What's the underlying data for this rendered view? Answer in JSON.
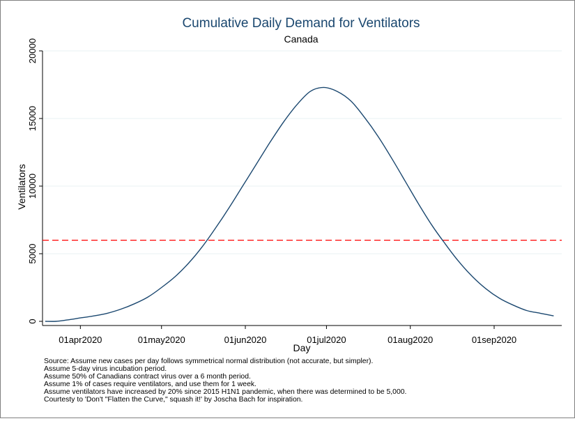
{
  "chart_data": {
    "type": "line",
    "title": "Cumulative Daily Demand for Ventilators",
    "subtitle": "Canada",
    "xlabel": "Day",
    "ylabel": "Ventilators",
    "x_ticks": [
      {
        "label": "01apr2020",
        "day": 0
      },
      {
        "label": "01may2020",
        "day": 30
      },
      {
        "label": "01jun2020",
        "day": 61
      },
      {
        "label": "01jul2020",
        "day": 91
      },
      {
        "label": "01aug2020",
        "day": 122
      },
      {
        "label": "01sep2020",
        "day": 153
      }
    ],
    "y_ticks": [
      0,
      5000,
      10000,
      15000,
      20000
    ],
    "xlim": [
      "2020-03-18",
      "2020-09-26"
    ],
    "ylim": [
      0,
      20000
    ],
    "grid": "horizontal",
    "series": [
      {
        "color": "#1a476f",
        "x": [
          "2020-03-19",
          "2020-03-23",
          "2020-03-27",
          "2020-04-01",
          "2020-04-06",
          "2020-04-11",
          "2020-04-16",
          "2020-04-21",
          "2020-04-26",
          "2020-05-01",
          "2020-05-06",
          "2020-05-11",
          "2020-05-16",
          "2020-05-21",
          "2020-05-26",
          "2020-05-31",
          "2020-06-05",
          "2020-06-10",
          "2020-06-15",
          "2020-06-20",
          "2020-06-25",
          "2020-06-30",
          "2020-07-05",
          "2020-07-10",
          "2020-07-15",
          "2020-07-20",
          "2020-07-25",
          "2020-07-30",
          "2020-08-04",
          "2020-08-09",
          "2020-08-14",
          "2020-08-19",
          "2020-08-24",
          "2020-08-29",
          "2020-09-03",
          "2020-09-08",
          "2020-09-13",
          "2020-09-18",
          "2020-09-23"
        ],
        "y": [
          0,
          0,
          100,
          250,
          400,
          600,
          900,
          1300,
          1800,
          2500,
          3300,
          4300,
          5500,
          6900,
          8400,
          10000,
          11600,
          13200,
          14700,
          16000,
          17000,
          17300,
          17000,
          16300,
          15100,
          13700,
          12100,
          10400,
          8700,
          7100,
          5700,
          4400,
          3300,
          2400,
          1700,
          1200,
          800,
          600,
          400
        ]
      }
    ],
    "reference_lines": [
      {
        "axis": "y",
        "value": 6000,
        "color": "#ff0000",
        "style": "dashed"
      }
    ]
  },
  "notes": [
    "Source: Assume new cases per day follows symmetrical normal distribution (not accurate, but simpler).",
    "Assume 5-day virus incubation period.",
    "Assume 50% of Canadians contract virus over a 6 month period.",
    "Assume 1% of cases require ventilators, and use them for 1 week.",
    "Assume ventilators have increased by 20% since 2015 H1N1 pandemic, when there was determined to be 5,000.",
    "Courtesty to 'Don't \"Flatten the Curve,\" squash it!' by Joscha Bach for inspiration."
  ]
}
